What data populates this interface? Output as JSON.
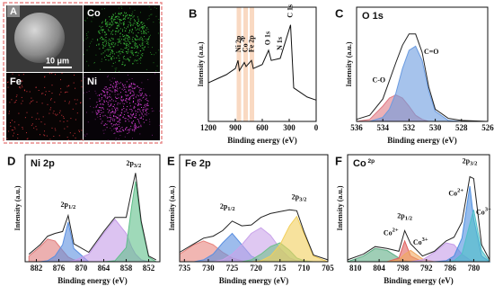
{
  "panel_a": {
    "label": "A",
    "scale_bar": "10 μm",
    "maps": [
      "Co",
      "Fe",
      "Ni"
    ]
  },
  "chart_data": [
    {
      "type": "line",
      "label": "B",
      "ylabel": "Intensity (a.u.)",
      "xlabel": "Binding energy (eV)",
      "xlim": [
        1200,
        0
      ],
      "xticks": [
        1200,
        900,
        600,
        300,
        0
      ],
      "ylim": [
        0,
        100
      ],
      "x": [
        1200,
        1100,
        1000,
        900,
        870,
        855,
        800,
        780,
        720,
        700,
        600,
        530,
        500,
        400,
        285,
        250,
        100,
        0
      ],
      "series": [
        {
          "color": "#111111",
          "type": "line",
          "values": [
            38,
            42,
            46,
            52,
            60,
            50,
            58,
            54,
            60,
            52,
            56,
            70,
            60,
            62,
            95,
            33,
            24,
            21
          ]
        }
      ],
      "annotations": [
        {
          "text": "Ni 2p",
          "x": 860,
          "y": 68,
          "highlight": true
        },
        {
          "text": "Co 2p",
          "x": 785,
          "y": 68,
          "highlight": true
        },
        {
          "text": "Fe 2p",
          "x": 715,
          "y": 68,
          "highlight": true
        },
        {
          "text": "O 1s",
          "x": 531,
          "y": 75,
          "highlight": false
        },
        {
          "text": "N 1s",
          "x": 400,
          "y": 70,
          "highlight": false
        },
        {
          "text": "C 1s",
          "x": 285,
          "y": 102,
          "highlight": false
        }
      ]
    },
    {
      "type": "area",
      "label": "C",
      "title": "O 1s",
      "ylabel": "Intensity (a.u.)",
      "xlabel": "Binding energy (eV)",
      "xlim": [
        536,
        526
      ],
      "xticks": [
        536,
        534,
        532,
        530,
        528,
        526
      ],
      "ylim": [
        0,
        100
      ],
      "x": [
        536,
        535,
        534,
        533.5,
        533,
        532.5,
        532,
        531.5,
        531,
        530.5,
        530,
        529,
        528,
        526
      ],
      "series": [
        {
          "color": "#e07b85",
          "type": "area",
          "values": [
            0,
            2,
            15,
            23,
            26,
            23,
            15,
            6,
            2,
            0,
            0,
            0,
            0,
            0
          ]
        },
        {
          "color": "#6b9be0",
          "type": "area",
          "values": [
            0,
            0,
            4,
            12,
            28,
            52,
            70,
            74,
            60,
            30,
            10,
            1,
            0,
            0
          ]
        },
        {
          "color": "#222222",
          "type": "line",
          "values": [
            2,
            6,
            22,
            40,
            58,
            75,
            86,
            86,
            68,
            34,
            12,
            3,
            1,
            0
          ]
        }
      ],
      "annotations": [
        {
          "text": "C-O",
          "x": 534.3,
          "y": 40
        },
        {
          "text": "C=O",
          "x": 530.3,
          "y": 68
        }
      ]
    },
    {
      "type": "area",
      "label": "D",
      "title": "Ni 2p",
      "ylabel": "Intensity (a.u.)",
      "xlabel": "Binding energy (eV)",
      "xlim": [
        885,
        849
      ],
      "xticks": [
        882,
        876,
        870,
        864,
        858,
        852
      ],
      "ylim": [
        0,
        100
      ],
      "x": [
        884,
        881,
        879,
        877,
        875,
        873.5,
        872,
        868,
        864,
        861,
        858,
        856.5,
        855.5,
        854,
        852,
        850
      ],
      "series": [
        {
          "color": "#e07b7b",
          "type": "area",
          "values": [
            6,
            16,
            24,
            22,
            12,
            5,
            2,
            0,
            0,
            0,
            0,
            0,
            0,
            0,
            0,
            0
          ]
        },
        {
          "color": "#5b8fe0",
          "type": "area",
          "values": [
            0,
            0,
            1,
            6,
            18,
            42,
            14,
            0,
            0,
            0,
            0,
            0,
            0,
            0,
            0,
            0
          ]
        },
        {
          "color": "#c49be8",
          "type": "area",
          "values": [
            0,
            0,
            0,
            0,
            0,
            0,
            1,
            8,
            30,
            45,
            30,
            15,
            8,
            2,
            0,
            0
          ]
        },
        {
          "color": "#5fbf8a",
          "type": "area",
          "values": [
            0,
            0,
            0,
            0,
            0,
            0,
            0,
            0,
            0,
            1,
            15,
            60,
            85,
            40,
            5,
            0
          ]
        },
        {
          "color": "#222222",
          "type": "line",
          "values": [
            8,
            18,
            27,
            30,
            32,
            49,
            19,
            10,
            32,
            47,
            47,
            76,
            94,
            43,
            6,
            2
          ]
        }
      ],
      "annotations": [
        {
          "text": "2p1/2",
          "x": 873.5,
          "y": 60
        },
        {
          "text": "2p3/2",
          "x": 856,
          "y": 104
        }
      ]
    },
    {
      "type": "area",
      "label": "E",
      "title": "Fe 2p",
      "ylabel": "Intensity (a.u.)",
      "xlabel": "Binding energy (eV)",
      "xlim": [
        736,
        705
      ],
      "xticks": [
        735,
        730,
        725,
        720,
        715,
        710,
        705
      ],
      "ylim": [
        0,
        100
      ],
      "x": [
        736,
        733,
        731,
        729,
        727,
        725,
        723,
        721,
        719,
        717,
        715,
        713,
        711.5,
        710,
        708,
        705
      ],
      "series": [
        {
          "color": "#e8857f",
          "type": "area",
          "values": [
            8,
            18,
            22,
            18,
            10,
            4,
            1,
            0,
            0,
            0,
            0,
            0,
            0,
            0,
            0,
            0
          ]
        },
        {
          "color": "#5b8fe0",
          "type": "area",
          "values": [
            0,
            0,
            2,
            8,
            20,
            30,
            18,
            6,
            1,
            0,
            0,
            0,
            0,
            0,
            0,
            0
          ]
        },
        {
          "color": "#c9a3ea",
          "type": "area",
          "values": [
            0,
            0,
            0,
            0,
            2,
            8,
            18,
            30,
            36,
            28,
            14,
            4,
            1,
            0,
            0,
            0
          ]
        },
        {
          "color": "#6fc08a",
          "type": "area",
          "values": [
            0,
            0,
            0,
            0,
            0,
            0,
            0,
            2,
            8,
            16,
            20,
            12,
            4,
            1,
            0,
            0
          ]
        },
        {
          "color": "#f2cf5b",
          "type": "area",
          "values": [
            0,
            0,
            0,
            0,
            0,
            0,
            0,
            0,
            1,
            6,
            18,
            38,
            48,
            30,
            6,
            0
          ]
        },
        {
          "color": "#222222",
          "type": "line",
          "values": [
            10,
            19,
            25,
            27,
            33,
            43,
            38,
            39,
            47,
            51,
            53,
            55,
            54,
            32,
            7,
            2
          ]
        }
      ],
      "annotations": [
        {
          "text": "2p1/2",
          "x": 726,
          "y": 58
        },
        {
          "text": "2p3/2",
          "x": 711,
          "y": 68
        }
      ]
    },
    {
      "type": "area",
      "label": "F",
      "title": "Co 2p",
      "ylabel": "Intensity (a.u.)",
      "xlabel": "Binding energy (eV)",
      "xlim": [
        812,
        776
      ],
      "xticks": [
        810,
        804,
        798,
        792,
        786,
        780
      ],
      "ylim": [
        0,
        100
      ],
      "x": [
        812,
        808,
        805,
        802,
        799,
        797.5,
        796,
        793,
        790,
        787,
        785,
        783,
        781,
        780,
        778,
        776
      ],
      "series": [
        {
          "color": "#5fae86",
          "type": "area",
          "values": [
            0,
            6,
            14,
            12,
            4,
            1,
            0,
            0,
            0,
            0,
            0,
            0,
            0,
            0,
            0,
            0
          ]
        },
        {
          "color": "#e0605e",
          "type": "area",
          "values": [
            0,
            0,
            0,
            0,
            4,
            22,
            6,
            0,
            0,
            0,
            0,
            0,
            0,
            0,
            0,
            0
          ]
        },
        {
          "color": "#f0a860",
          "type": "area",
          "values": [
            0,
            0,
            0,
            0,
            2,
            8,
            12,
            3,
            0,
            0,
            0,
            0,
            0,
            0,
            0,
            0
          ]
        },
        {
          "color": "#c49be8",
          "type": "area",
          "values": [
            0,
            0,
            0,
            0,
            0,
            0,
            0,
            2,
            10,
            20,
            18,
            8,
            2,
            0,
            0,
            0
          ]
        },
        {
          "color": "#4f8fe0",
          "type": "area",
          "values": [
            0,
            0,
            0,
            0,
            0,
            0,
            0,
            0,
            0,
            1,
            6,
            25,
            80,
            45,
            6,
            0
          ]
        },
        {
          "color": "#4fc0c8",
          "type": "area",
          "values": [
            0,
            0,
            0,
            0,
            0,
            0,
            0,
            0,
            0,
            0,
            1,
            8,
            40,
            55,
            12,
            0
          ]
        },
        {
          "color": "#222222",
          "type": "line",
          "values": [
            2,
            8,
            16,
            14,
            11,
            33,
            19,
            6,
            11,
            22,
            26,
            42,
            90,
            88,
            18,
            2
          ]
        }
      ],
      "annotations": [
        {
          "text": "2p3/2",
          "x": 781,
          "y": 106
        },
        {
          "text": "2p1/2",
          "x": 797.5,
          "y": 48
        },
        {
          "text": "Co2+",
          "x": 784.5,
          "y": 72
        },
        {
          "text": "Co3+",
          "x": 777.5,
          "y": 52
        },
        {
          "text": "Co2+",
          "x": 801,
          "y": 30
        },
        {
          "text": "Co3+",
          "x": 793.5,
          "y": 20
        }
      ]
    }
  ]
}
